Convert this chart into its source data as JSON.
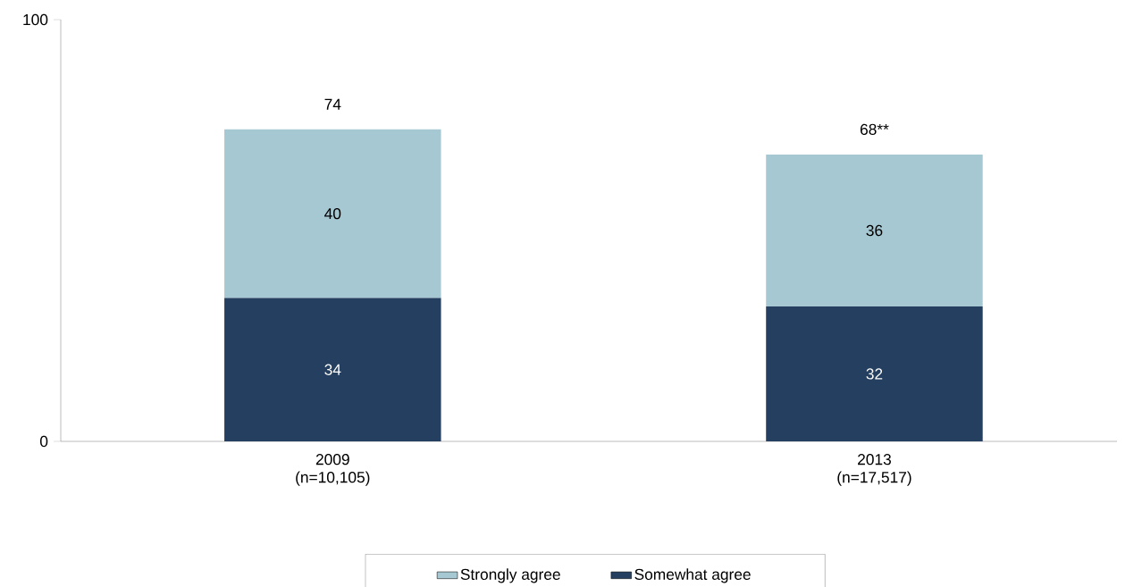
{
  "chart_data": {
    "type": "bar",
    "stacked": true,
    "categories": [
      "2009 (n=10,105)",
      "2013 (n=17,517)"
    ],
    "series": [
      {
        "name": "Somewhat agree",
        "color": "#243f60",
        "values": [
          34,
          32
        ]
      },
      {
        "name": "Strongly agree",
        "color": "#a5c8d2",
        "values": [
          40,
          36
        ]
      }
    ],
    "ylim": [
      0,
      100
    ],
    "yticks": [
      0,
      100
    ],
    "data_labels": true,
    "totals": [
      "74",
      "68**"
    ],
    "legend": "bottom"
  }
}
